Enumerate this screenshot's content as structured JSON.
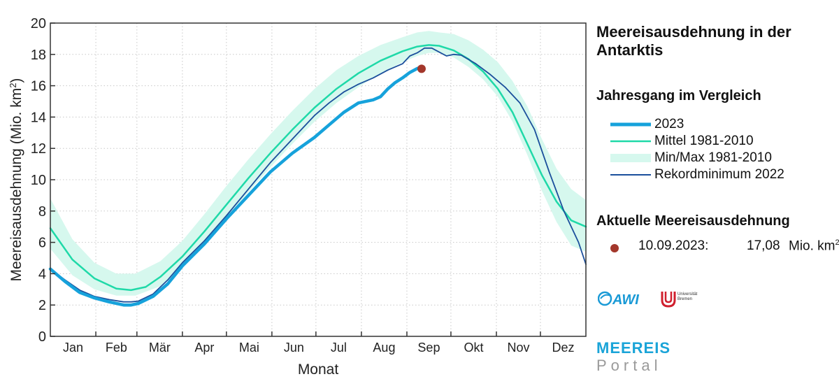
{
  "chart_data": {
    "type": "line",
    "xlabel": "Monat",
    "ylabel": "Meereisausdehnung (Mio. km²)",
    "ylim": [
      0,
      20
    ],
    "yticks": [
      0,
      2,
      4,
      6,
      8,
      10,
      12,
      14,
      16,
      18,
      20
    ],
    "xlim": [
      0,
      365
    ],
    "months": [
      "Jan",
      "Feb",
      "Mär",
      "Apr",
      "Mai",
      "Jun",
      "Jul",
      "Aug",
      "Sep",
      "Okt",
      "Nov",
      "Dez"
    ],
    "grid": true,
    "legend_placement": "right",
    "series": [
      {
        "name": "Min/Max 1981-2010",
        "kind": "band",
        "color": "#d6f8ee",
        "x": [
          0,
          15,
          30,
          45,
          58,
          75,
          90,
          105,
          120,
          135,
          150,
          165,
          180,
          195,
          210,
          225,
          240,
          250,
          258,
          265,
          275,
          285,
          295,
          305,
          315,
          325,
          335,
          345,
          355,
          365
        ],
        "lower": [
          5.6,
          3.9,
          3.0,
          2.6,
          2.6,
          3.2,
          4.4,
          5.9,
          7.5,
          9.2,
          10.8,
          12.3,
          13.7,
          14.9,
          15.9,
          16.8,
          17.5,
          17.9,
          18.1,
          18.1,
          17.8,
          17.2,
          16.4,
          15.3,
          13.7,
          11.6,
          9.3,
          7.3,
          5.8,
          5.4
        ],
        "upper": [
          8.8,
          6.2,
          4.7,
          4.0,
          4.0,
          4.8,
          6.1,
          7.8,
          9.6,
          11.3,
          12.9,
          14.4,
          15.8,
          17.0,
          17.9,
          18.6,
          19.1,
          19.4,
          19.5,
          19.4,
          19.3,
          18.9,
          18.3,
          17.5,
          16.3,
          14.7,
          12.6,
          10.7,
          9.4,
          8.7
        ]
      },
      {
        "name": "Mittel 1981-2010",
        "kind": "line",
        "color": "#1fd9a8",
        "x": [
          0,
          15,
          30,
          45,
          55,
          65,
          75,
          90,
          105,
          120,
          135,
          150,
          165,
          180,
          195,
          210,
          225,
          240,
          250,
          258,
          265,
          275,
          285,
          295,
          305,
          315,
          325,
          335,
          345,
          355,
          365
        ],
        "y": [
          6.9,
          4.9,
          3.7,
          3.05,
          2.95,
          3.15,
          3.8,
          5.1,
          6.7,
          8.4,
          10.1,
          11.7,
          13.2,
          14.6,
          15.8,
          16.8,
          17.6,
          18.2,
          18.5,
          18.6,
          18.55,
          18.25,
          17.7,
          16.9,
          15.8,
          14.3,
          12.3,
          10.3,
          8.6,
          7.4,
          7.0
        ]
      },
      {
        "name": "Rekordminimum 2022",
        "kind": "line",
        "color": "#1b4f9c",
        "x": [
          0,
          10,
          20,
          30,
          40,
          50,
          55,
          60,
          70,
          80,
          90,
          105,
          120,
          135,
          150,
          165,
          180,
          190,
          200,
          210,
          220,
          230,
          240,
          245,
          250,
          255,
          260,
          265,
          270,
          275,
          280,
          290,
          300,
          310,
          320,
          330,
          340,
          350,
          360,
          365
        ],
        "y": [
          4.3,
          3.6,
          2.95,
          2.55,
          2.35,
          2.2,
          2.2,
          2.25,
          2.7,
          3.6,
          4.7,
          6.1,
          7.7,
          9.4,
          11.1,
          12.6,
          14.1,
          14.9,
          15.6,
          16.1,
          16.5,
          17.0,
          17.4,
          17.9,
          18.1,
          18.4,
          18.4,
          18.15,
          17.9,
          18.0,
          17.95,
          17.4,
          16.7,
          15.9,
          14.9,
          13.2,
          10.5,
          8.0,
          6.0,
          4.6
        ]
      },
      {
        "name": "2023",
        "kind": "line",
        "color": "#16a2db",
        "x": [
          0,
          10,
          20,
          30,
          40,
          50,
          55,
          60,
          70,
          80,
          90,
          105,
          120,
          135,
          150,
          165,
          180,
          190,
          200,
          210,
          220,
          225,
          230,
          235,
          240,
          245,
          250,
          253
        ],
        "y": [
          4.3,
          3.5,
          2.8,
          2.45,
          2.2,
          2.0,
          2.0,
          2.1,
          2.55,
          3.35,
          4.5,
          5.9,
          7.5,
          9.0,
          10.5,
          11.7,
          12.7,
          13.5,
          14.3,
          14.9,
          15.1,
          15.3,
          15.8,
          16.2,
          16.5,
          16.85,
          17.1,
          17.2
        ]
      }
    ],
    "current_point": {
      "x": 253,
      "y": 17.08,
      "color": "#a3372b"
    }
  },
  "legend": {
    "title": "Meereisausdehnung in der Antarktis",
    "subtitle": "Jahresgang im Vergleich",
    "items": [
      {
        "label": "2023",
        "color": "#16a2db"
      },
      {
        "label": "Mittel 1981-2010",
        "color": "#1fd9a8"
      },
      {
        "label": "Min/Max 1981-2010",
        "color": "#d6f8ee"
      },
      {
        "label": "Rekordminimum 2022",
        "color": "#1b4f9c"
      }
    ]
  },
  "current": {
    "title": "Aktuelle Meereisausdehnung",
    "date": "10.09.2023:",
    "value": "17,08",
    "unit": "Mio. km",
    "unit_sup": "2"
  },
  "logos": {
    "awi": "AWI",
    "uni_line1": "Universität",
    "uni_line2": "Bremen"
  },
  "portal": {
    "line1": "MEEREIS",
    "line2": "Portal"
  }
}
